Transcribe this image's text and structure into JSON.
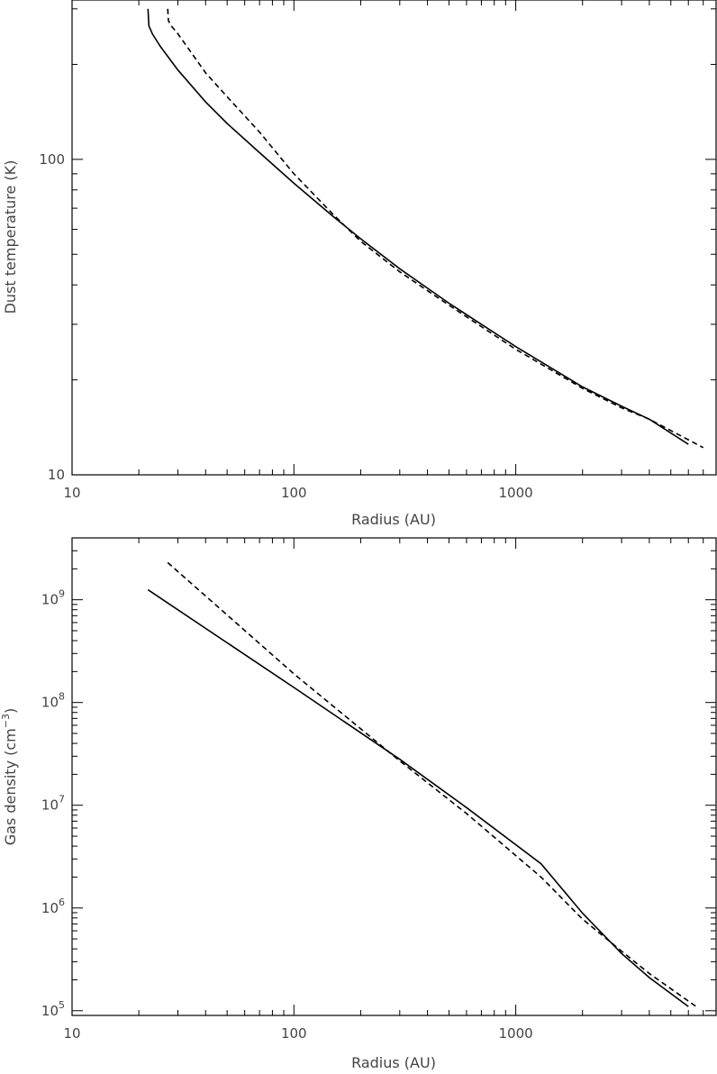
{
  "chart_data": [
    {
      "type": "line",
      "xscale": "log",
      "yscale": "log",
      "xlim": [
        10,
        8000
      ],
      "ylim": [
        10,
        320
      ],
      "xlabel": "Radius (AU)",
      "ylabel": "Dust temperature (K)",
      "xticks": [
        {
          "value": 10,
          "label": "10"
        },
        {
          "value": 100,
          "label": "100"
        },
        {
          "value": 1000,
          "label": "1000"
        }
      ],
      "yticks": [
        {
          "value": 10,
          "label": "10"
        },
        {
          "value": 100,
          "label": "100"
        }
      ],
      "series": [
        {
          "style": "solid",
          "x": [
            22,
            22.2,
            23,
            25,
            30,
            40,
            50,
            70,
            100,
            150,
            200,
            300,
            500,
            700,
            1000,
            2000,
            3000,
            4000,
            6000
          ],
          "y": [
            300,
            265,
            250,
            228,
            192,
            152,
            130,
            105,
            84,
            66,
            56,
            45,
            35,
            30,
            25.5,
            19,
            16.5,
            15,
            12.5
          ]
        },
        {
          "style": "dashed",
          "x": [
            27,
            27.2,
            28,
            30,
            40,
            50,
            70,
            100,
            150,
            200,
            300,
            500,
            700,
            1000,
            2000,
            3000,
            4000,
            7000
          ],
          "y": [
            300,
            275,
            265,
            250,
            188,
            158,
            122,
            90,
            67,
            55,
            44,
            34.5,
            29.5,
            25,
            18.8,
            16.3,
            15,
            12.2
          ]
        }
      ]
    },
    {
      "type": "line",
      "xscale": "log",
      "yscale": "log",
      "xlim": [
        10,
        8000
      ],
      "ylim": [
        90000,
        4000000000
      ],
      "xlabel": "Radius (AU)",
      "ylabel_main": "Gas density (cm",
      "ylabel_sup": "−3",
      "ylabel_end": ")",
      "xticks": [
        {
          "value": 10,
          "label": "10"
        },
        {
          "value": 100,
          "label": "100"
        },
        {
          "value": 1000,
          "label": "1000"
        }
      ],
      "yticks": [
        {
          "value": 100000,
          "base": "10",
          "exp": "5"
        },
        {
          "value": 1000000,
          "base": "10",
          "exp": "6"
        },
        {
          "value": 10000000,
          "base": "10",
          "exp": "7"
        },
        {
          "value": 100000000,
          "base": "10",
          "exp": "8"
        },
        {
          "value": 1000000000,
          "base": "10",
          "exp": "9"
        }
      ],
      "series": [
        {
          "style": "solid",
          "x": [
            22,
            100,
            300,
            600,
            1300,
            2000,
            3000,
            4000,
            6000
          ],
          "y": [
            1250000000,
            140000000,
            28000000,
            9500000,
            2700000,
            890000,
            360000,
            210000,
            110000
          ]
        },
        {
          "style": "dashed",
          "x": [
            27,
            100,
            300,
            600,
            1300,
            2000,
            3000,
            4000,
            6500
          ],
          "y": [
            2300000000,
            190000000,
            27000000,
            8300000,
            2000000,
            780000,
            380000,
            230000,
            110000
          ]
        }
      ]
    }
  ]
}
